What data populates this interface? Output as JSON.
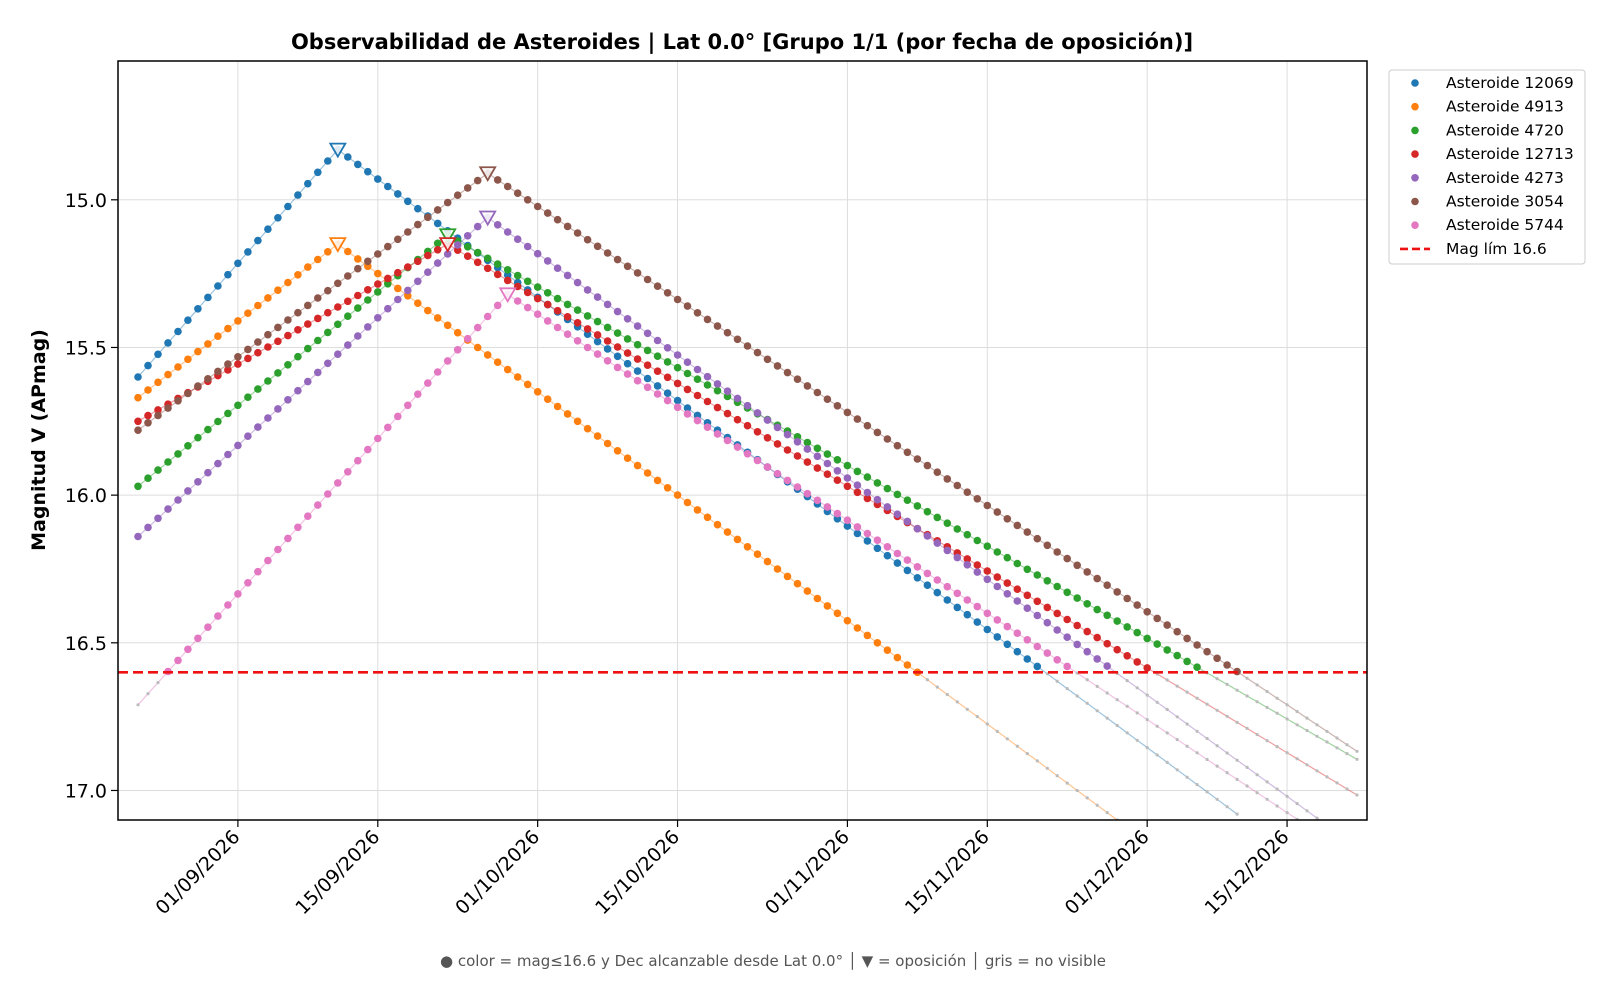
{
  "chart_data": {
    "type": "scatter",
    "title": "Observabilidad de Asteroides  |  Lat 0.0°  [Grupo 1/1 (por fecha de oposición)]",
    "xlabel": "",
    "ylabel": "Magnitud V (APmag)",
    "footnote": "● color = mag≤16.6 y Dec alcanzable desde Lat 0.0°  │  ▼ = oposición  │  gris = no visible",
    "x_type": "date",
    "xlim": [
      "2026-08-20",
      "2026-12-23"
    ],
    "ylim": [
      17.1,
      14.53
    ],
    "y_inverted": true,
    "x_ticks": [
      "2026-09-01",
      "2026-09-15",
      "2026-10-01",
      "2026-10-15",
      "2026-11-01",
      "2026-11-15",
      "2026-12-01",
      "2026-12-15"
    ],
    "x_tick_labels": [
      "01/09/2026",
      "15/09/2026",
      "01/10/2026",
      "15/10/2026",
      "01/11/2026",
      "15/11/2026",
      "01/12/2026",
      "15/12/2026"
    ],
    "y_ticks": [
      15.0,
      15.5,
      16.0,
      16.5,
      17.0
    ],
    "y_tick_labels": [
      "15.0",
      "15.5",
      "16.0",
      "16.5",
      "17.0"
    ],
    "grid": true,
    "legend_position": "outside-top-right",
    "sample_step_days": 1,
    "series": [
      {
        "name": "Asteroide 12069",
        "color": "#1f77b4",
        "start": "2026-08-22",
        "end": "2026-12-10",
        "start_mag": 15.6,
        "opposition": "2026-09-11",
        "opposition_mag": 14.83,
        "slope_after": 0.025
      },
      {
        "name": "Asteroide 4913",
        "color": "#ff7f0e",
        "start": "2026-08-22",
        "end": "2026-12-10",
        "start_mag": 15.67,
        "opposition": "2026-09-11",
        "opposition_mag": 15.15,
        "slope_after": 0.025
      },
      {
        "name": "Asteroide 4720",
        "color": "#2ca02c",
        "start": "2026-08-22",
        "end": "2026-12-22",
        "start_mag": 15.97,
        "opposition": "2026-09-22",
        "opposition_mag": 15.12,
        "slope_after": 0.0195
      },
      {
        "name": "Asteroide 12713",
        "color": "#d62728",
        "start": "2026-08-22",
        "end": "2026-12-22",
        "start_mag": 15.75,
        "opposition": "2026-09-22",
        "opposition_mag": 15.15,
        "slope_after": 0.0205
      },
      {
        "name": "Asteroide 4273",
        "color": "#9467bd",
        "start": "2026-08-22",
        "end": "2026-12-22",
        "start_mag": 16.14,
        "opposition": "2026-09-26",
        "opposition_mag": 15.06,
        "slope_after": 0.0245
      },
      {
        "name": "Asteroide 3054",
        "color": "#8c564b",
        "start": "2026-08-22",
        "end": "2026-12-22",
        "start_mag": 15.78,
        "opposition": "2026-09-26",
        "opposition_mag": 14.91,
        "slope_after": 0.0225
      },
      {
        "name": "Asteroide 5744",
        "color": "#e377c2",
        "start": "2026-08-22",
        "end": "2026-12-22",
        "start_mag": 16.71,
        "opposition": "2026-09-28",
        "opposition_mag": 15.32,
        "slope_after": 0.0225
      }
    ],
    "limit_line": {
      "name": "Mag lím 16.6",
      "value": 16.6,
      "color": "#ee1111",
      "style": "dashed"
    }
  }
}
